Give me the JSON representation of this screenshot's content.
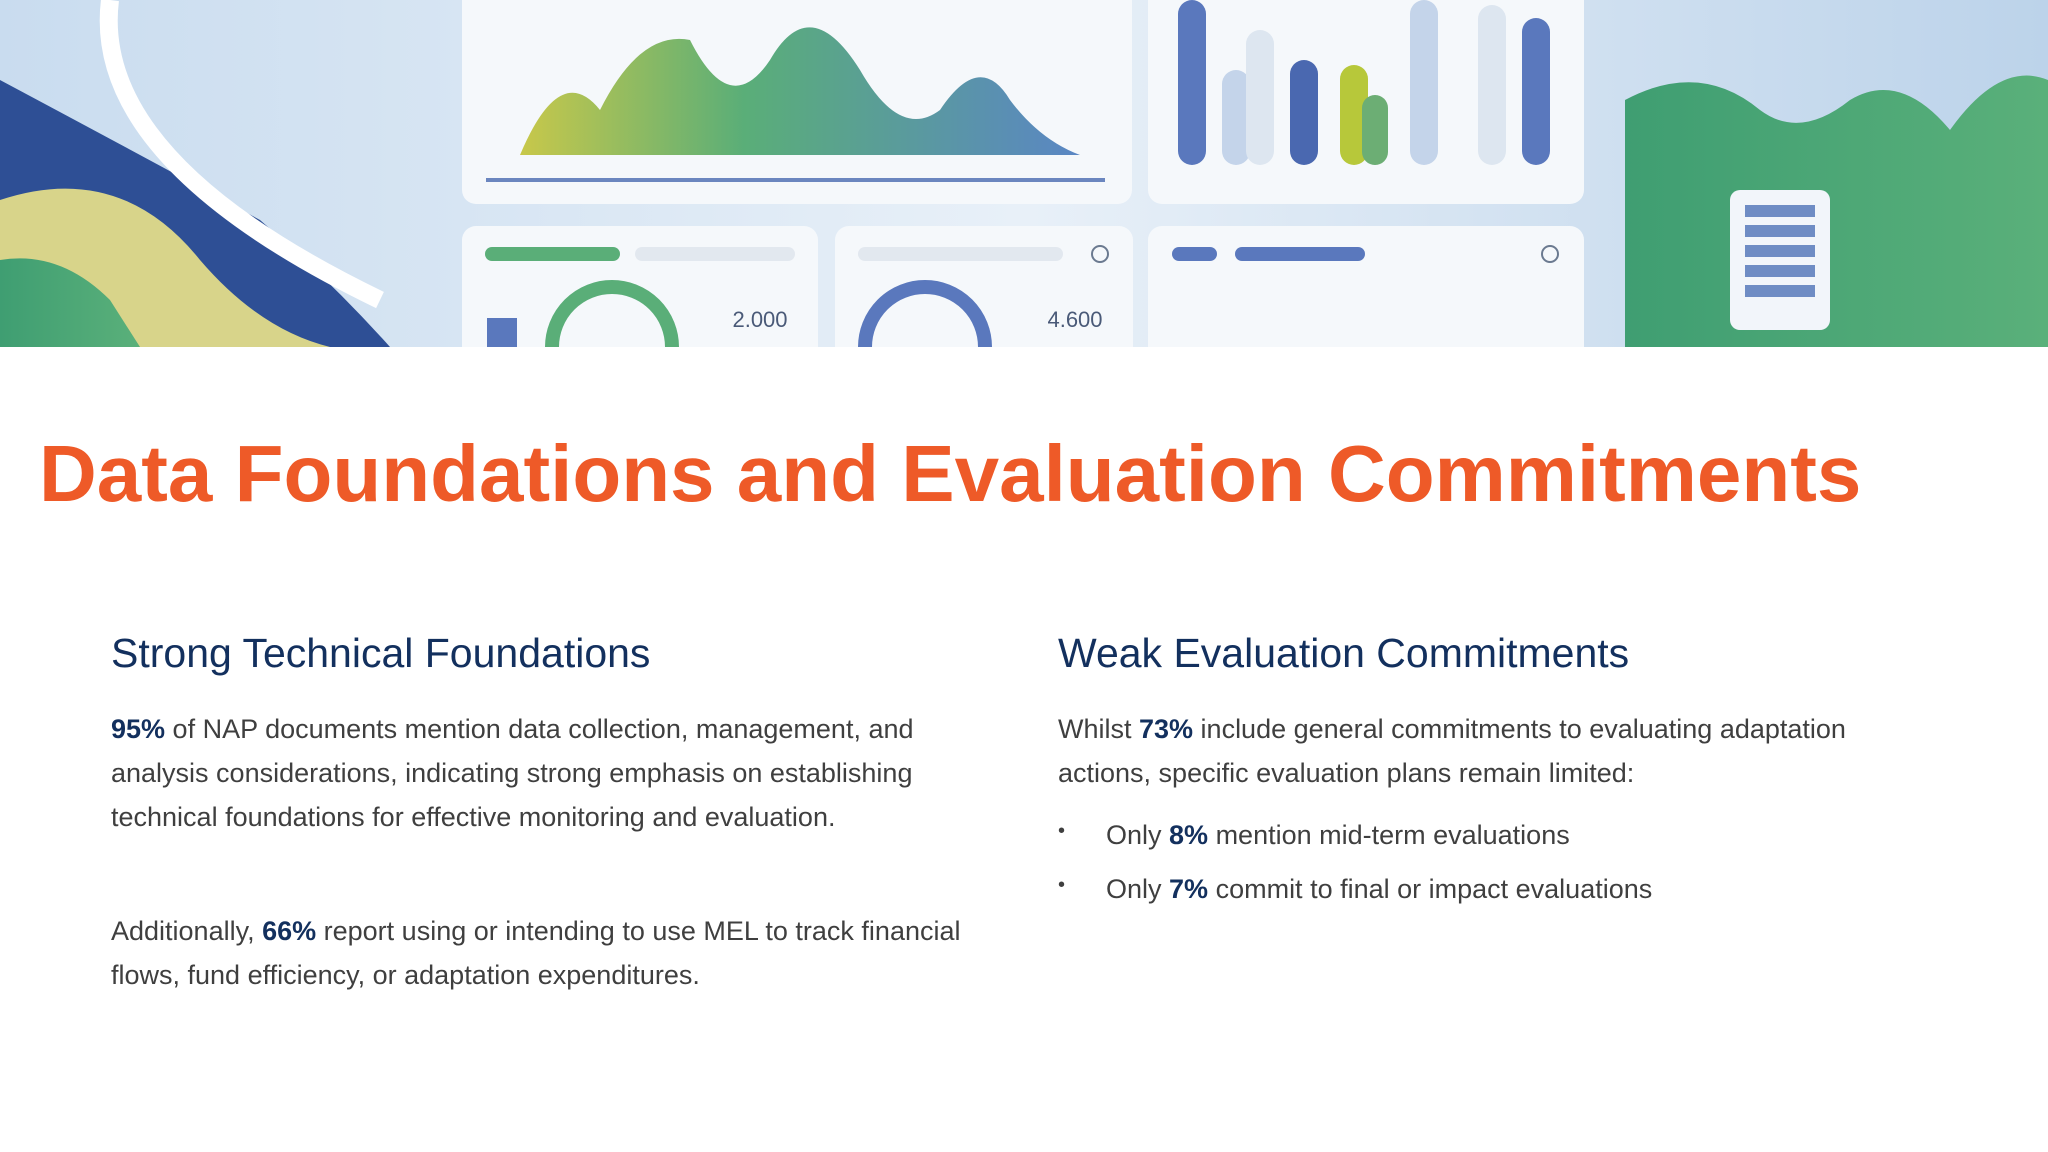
{
  "banner": {
    "labels": [
      "2.000",
      "4.600"
    ]
  },
  "title": "Data Foundations and Evaluation Commitments",
  "columns": [
    {
      "heading": "Strong Technical Foundations",
      "paragraphs": [
        [
          {
            "text": "95%",
            "bold": true
          },
          {
            "text": " of NAP documents mention data collection, management, and analysis considerations, indicating strong emphasis on establishing technical foundations for effective monitoring and evaluation."
          }
        ],
        [
          {
            "text": "Additionally, "
          },
          {
            "text": "66%",
            "bold": true
          },
          {
            "text": " report using or intending to use MEL to track financial flows, fund efficiency, or adaptation expenditures."
          }
        ]
      ],
      "bullets": []
    },
    {
      "heading": "Weak Evaluation Commitments",
      "paragraphs": [
        [
          {
            "text": "Whilst "
          },
          {
            "text": "73%",
            "bold": true
          },
          {
            "text": " include general commitments to evaluating adaptation actions, specific evaluation plans remain limited:"
          }
        ]
      ],
      "bullets": [
        [
          {
            "text": "Only "
          },
          {
            "text": "8%",
            "bold": true
          },
          {
            "text": " mention mid-term evaluations"
          }
        ],
        [
          {
            "text": "Only "
          },
          {
            "text": "7%",
            "bold": true
          },
          {
            "text": " commit to final or impact evaluations"
          }
        ]
      ]
    }
  ]
}
